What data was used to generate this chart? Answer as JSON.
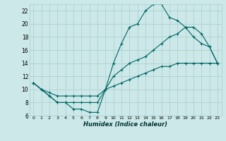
{
  "xlabel": "Humidex (Indice chaleur)",
  "bg_color": "#cce8e8",
  "grid_color": "#aacccc",
  "line_color": "#006666",
  "xlim": [
    -0.5,
    23.5
  ],
  "ylim": [
    6,
    23
  ],
  "xticks": [
    0,
    1,
    2,
    3,
    4,
    5,
    6,
    7,
    8,
    9,
    10,
    11,
    12,
    13,
    14,
    15,
    16,
    17,
    18,
    19,
    20,
    21,
    22,
    23
  ],
  "yticks": [
    6,
    8,
    10,
    12,
    14,
    16,
    18,
    20,
    22
  ],
  "line1_x": [
    0,
    1,
    2,
    3,
    4,
    5,
    6,
    7,
    8,
    9,
    10,
    11,
    12,
    13,
    14,
    15,
    16,
    17,
    18,
    19,
    20,
    21,
    22,
    23
  ],
  "line1_y": [
    11,
    10,
    9,
    8,
    8,
    7,
    7,
    6.5,
    6.5,
    10,
    14,
    17,
    19.5,
    20,
    22,
    23,
    23,
    21,
    20.5,
    19.5,
    18,
    17,
    16.5,
    14
  ],
  "line2_x": [
    0,
    1,
    2,
    3,
    4,
    5,
    6,
    7,
    8,
    9,
    10,
    11,
    12,
    13,
    14,
    15,
    16,
    17,
    18,
    19,
    20,
    21,
    22,
    23
  ],
  "line2_y": [
    11,
    10,
    9,
    8,
    8,
    8,
    8,
    8,
    8,
    10,
    12,
    13,
    14,
    14.5,
    15,
    16,
    17,
    18,
    18.5,
    19.5,
    19.5,
    18.5,
    16.5,
    14
  ],
  "line3_x": [
    0,
    1,
    2,
    3,
    4,
    5,
    6,
    7,
    8,
    9,
    10,
    11,
    12,
    13,
    14,
    15,
    16,
    17,
    18,
    19,
    20,
    21,
    22,
    23
  ],
  "line3_y": [
    11,
    10,
    9.5,
    9,
    9,
    9,
    9,
    9,
    9,
    10,
    10.5,
    11,
    11.5,
    12,
    12.5,
    13,
    13.5,
    13.5,
    14,
    14,
    14,
    14,
    14,
    14
  ]
}
